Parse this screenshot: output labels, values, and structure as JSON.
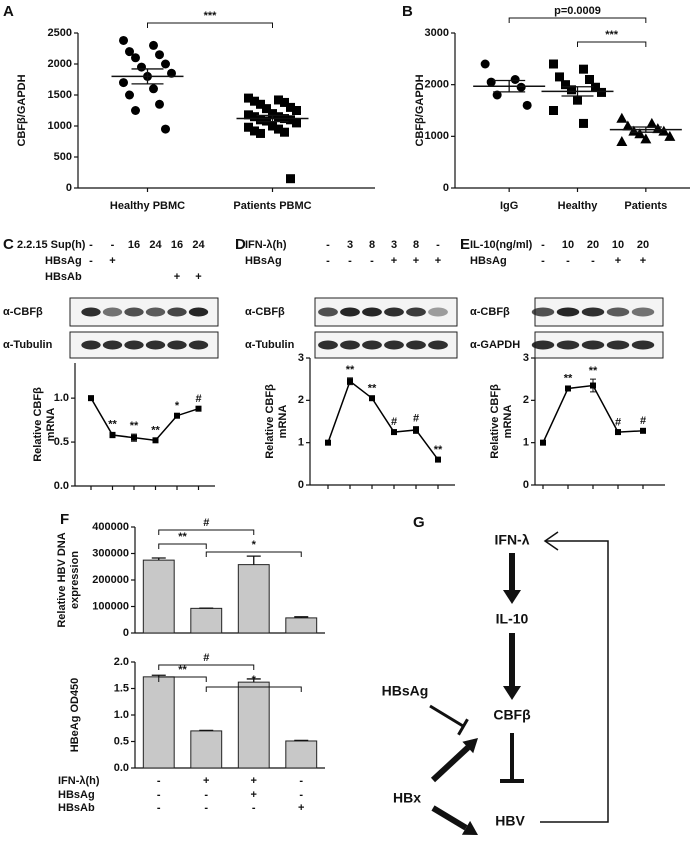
{
  "panel_labels": [
    "A",
    "B",
    "C",
    "D",
    "E",
    "F",
    "G"
  ],
  "chart_data": [
    {
      "type": "dot",
      "ylabel": [
        "CBFβ/GAPDH"
      ],
      "categories": [
        "Healthy PBMC",
        "Patients PBMC"
      ],
      "values": [
        [
          2380,
          2300,
          2200,
          2150,
          2100,
          2000,
          1950,
          1850,
          1800,
          1700,
          1600,
          1500,
          1350,
          1250,
          950
        ],
        [
          1450,
          1420,
          1400,
          1380,
          1350,
          1300,
          1280,
          1250,
          1200,
          1180,
          1150,
          1150,
          1120,
          1100,
          1100,
          1080,
          1050,
          1000,
          980,
          950,
          920,
          900,
          880,
          150
        ]
      ],
      "means": [
        1800,
        1120
      ],
      "sems": [
        120,
        50
      ],
      "markers": [
        "circle",
        "square"
      ],
      "color": "#000000",
      "ylim": [
        0,
        2500
      ],
      "yticks": [
        0,
        500,
        1000,
        1500,
        2000,
        2500
      ],
      "brackets": [
        {
          "text": "***",
          "from": 0,
          "to": 1
        }
      ]
    },
    {
      "type": "dot",
      "ylabel": [
        "CBFβ/GAPDH"
      ],
      "categories": [
        "IgG",
        "Healthy",
        "Patients"
      ],
      "values": [
        [
          2400,
          2100,
          2050,
          1950,
          1800,
          1600
        ],
        [
          2400,
          2300,
          2150,
          2100,
          2000,
          1950,
          1900,
          1850,
          1700,
          1500,
          1250
        ],
        [
          1350,
          1250,
          1200,
          1150,
          1100,
          1100,
          1050,
          1000,
          950,
          900
        ]
      ],
      "means": [
        1970,
        1870,
        1130
      ],
      "sems": [
        110,
        90,
        50
      ],
      "markers": [
        "circle",
        "square",
        "triangle"
      ],
      "color": "#000000",
      "ylim": [
        0,
        3000
      ],
      "yticks": [
        0,
        1000,
        2000,
        3000
      ],
      "brackets": [
        {
          "text": "p=0.0009",
          "from": 0,
          "to": 2
        },
        {
          "text": "***",
          "from": 1,
          "to": 2
        }
      ]
    },
    {
      "type": "line",
      "ylabel": [
        "Relative CBFβ",
        "mRNA"
      ],
      "values": [
        1.0,
        0.58,
        0.55,
        0.52,
        0.8,
        0.88
      ],
      "errors": [
        0.02,
        0.03,
        0.04,
        0.02,
        0.02,
        0.02
      ],
      "point_labels": [
        null,
        "**",
        "**",
        "**",
        "*",
        "#"
      ],
      "color": "#000000",
      "ylim": [
        0,
        1.4
      ],
      "yticks": [
        {
          "value": 0,
          "label": "0.0"
        },
        0.5,
        {
          "value": 1,
          "label": "1.0"
        }
      ]
    },
    {
      "type": "line",
      "ylabel": [
        "Relative CBFβ",
        "mRNA"
      ],
      "values": [
        1.0,
        2.45,
        2.05,
        1.25,
        1.3,
        0.6
      ],
      "errors": [
        0.03,
        0.08,
        0.04,
        0.05,
        0.08,
        0.03
      ],
      "point_labels": [
        null,
        "**",
        "**",
        "#",
        "#",
        "**"
      ],
      "color": "#000000",
      "ylim": [
        0,
        3
      ],
      "yticks": [
        0,
        1,
        2,
        3
      ]
    },
    {
      "type": "line",
      "ylabel": [
        "Relative CBFβ",
        "mRNA"
      ],
      "values": [
        1.0,
        2.28,
        2.35,
        1.25,
        1.28
      ],
      "errors": [
        0.03,
        0.05,
        0.15,
        0.03,
        0.04
      ],
      "point_labels": [
        null,
        "**",
        "**",
        "#",
        "#"
      ],
      "color": "#000000",
      "ylim": [
        0,
        3
      ],
      "yticks": [
        0,
        1,
        2,
        3
      ]
    },
    {
      "type": "bar",
      "ylabel": [
        "Relative HBV DNA",
        "expression"
      ],
      "values": [
        275000,
        93000,
        258000,
        57000
      ],
      "errors": [
        8000,
        1000,
        32000,
        4000
      ],
      "color": "#c8c8c8",
      "ylim": [
        0,
        400000
      ],
      "yticks": [
        0,
        100000,
        200000,
        300000,
        400000
      ],
      "brackets": [
        {
          "text": "#",
          "from": 0,
          "to": 2
        },
        {
          "text": "**",
          "from": 0,
          "to": 1
        },
        {
          "text": "*",
          "from": 1,
          "to": 3
        }
      ]
    },
    {
      "type": "bar",
      "ylabel": [
        "HBeAg OD450"
      ],
      "values": [
        1.72,
        0.7,
        1.62,
        0.51
      ],
      "errors": [
        0.03,
        0.01,
        0.06,
        0.01
      ],
      "color": "#c8c8c8",
      "ylim": [
        0,
        2
      ],
      "yticks": [
        {
          "value": 0,
          "label": "0.0"
        },
        0.5,
        {
          "value": 1,
          "label": "1.0"
        },
        1.5,
        {
          "value": 2,
          "label": "2.0"
        }
      ],
      "brackets": [
        {
          "text": "#",
          "from": 0,
          "to": 2
        },
        {
          "text": "**",
          "from": 0,
          "to": 1
        },
        {
          "text": "*",
          "from": 1,
          "to": 3
        }
      ],
      "conditions": [
        {
          "label": "IFN-λ(h)",
          "values": [
            "-",
            "+",
            "+",
            "-"
          ]
        },
        {
          "label": "HBsAg",
          "values": [
            "-",
            "-",
            "+",
            "-"
          ]
        },
        {
          "label": "HBsAb",
          "values": [
            "-",
            "-",
            "-",
            "+"
          ]
        }
      ]
    }
  ],
  "blots": [
    {
      "conditions": [
        {
          "label": "2.2.15 Sup(h)",
          "values": [
            "-",
            "-",
            "16",
            "24",
            "16",
            "24"
          ]
        },
        {
          "label": "HBsAg",
          "values": [
            "-",
            "+",
            null,
            null,
            null,
            null
          ]
        },
        {
          "label": "HBsAb",
          "values": [
            null,
            null,
            null,
            null,
            "+",
            "+"
          ]
        }
      ],
      "bands": [
        "α-CBFβ",
        "α-Tubulin"
      ]
    },
    {
      "conditions": [
        {
          "label": "IFN-λ(h)",
          "values": [
            "-",
            "3",
            "8",
            "3",
            "8",
            "-"
          ]
        },
        {
          "label": "HBsAg",
          "values": [
            "-",
            "-",
            "-",
            "+",
            "+",
            "+"
          ]
        }
      ],
      "bands": [
        "α-CBFβ",
        "α-Tubulin"
      ]
    },
    {
      "conditions": [
        {
          "label": "IL-10(ng/ml)",
          "values": [
            "-",
            "10",
            "20",
            "10",
            "20"
          ]
        },
        {
          "label": "HBsAg",
          "values": [
            "-",
            "-",
            "-",
            "+",
            "+"
          ]
        }
      ],
      "bands": [
        "α-CBFβ",
        "α-GAPDH"
      ]
    }
  ],
  "diagram": {
    "nodes": [
      "IFN-λ",
      "IL-10",
      "HBsAg",
      "CBFβ",
      "HBx",
      "HBV"
    ]
  }
}
